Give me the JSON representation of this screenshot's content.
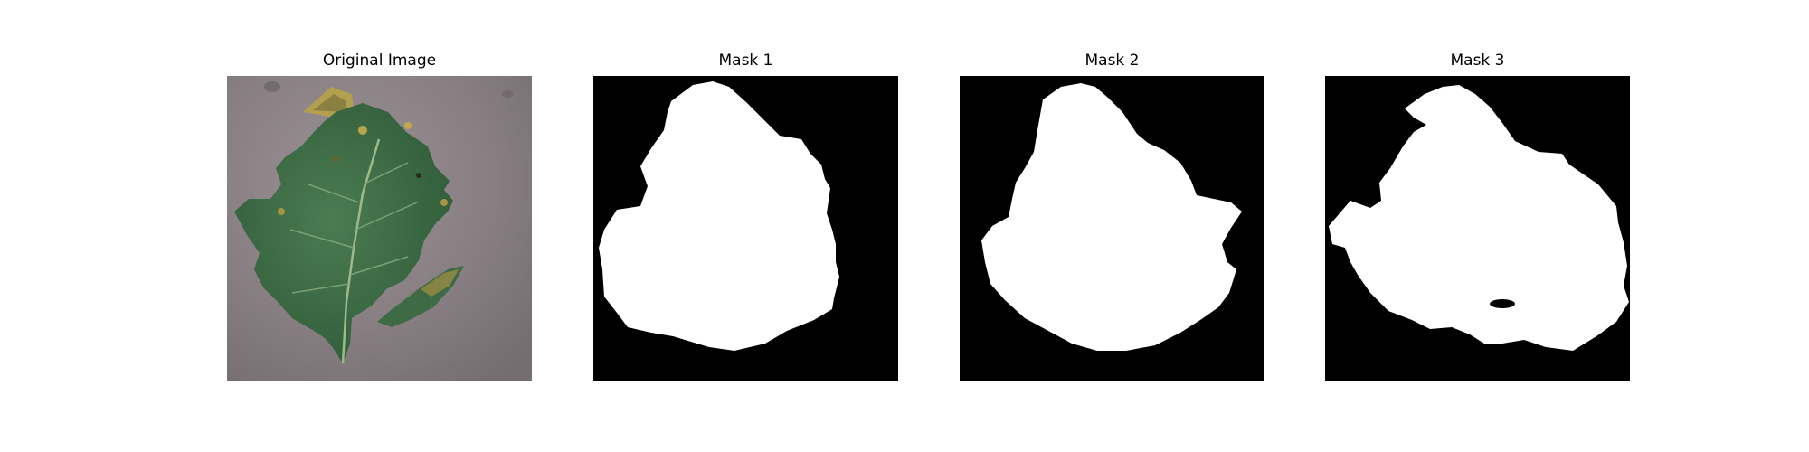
{
  "panels": [
    {
      "title": "Original Image",
      "image": "leaf-photo"
    },
    {
      "title": "Mask 1",
      "image": "binary-mask"
    },
    {
      "title": "Mask 2",
      "image": "binary-mask"
    },
    {
      "title": "Mask 3",
      "image": "binary-mask"
    }
  ],
  "colors": {
    "background": "#ffffff",
    "mask_fg": "#ffffff",
    "mask_bg": "#000000",
    "leaf": "#3f6d47",
    "ground": "#8c8286"
  }
}
